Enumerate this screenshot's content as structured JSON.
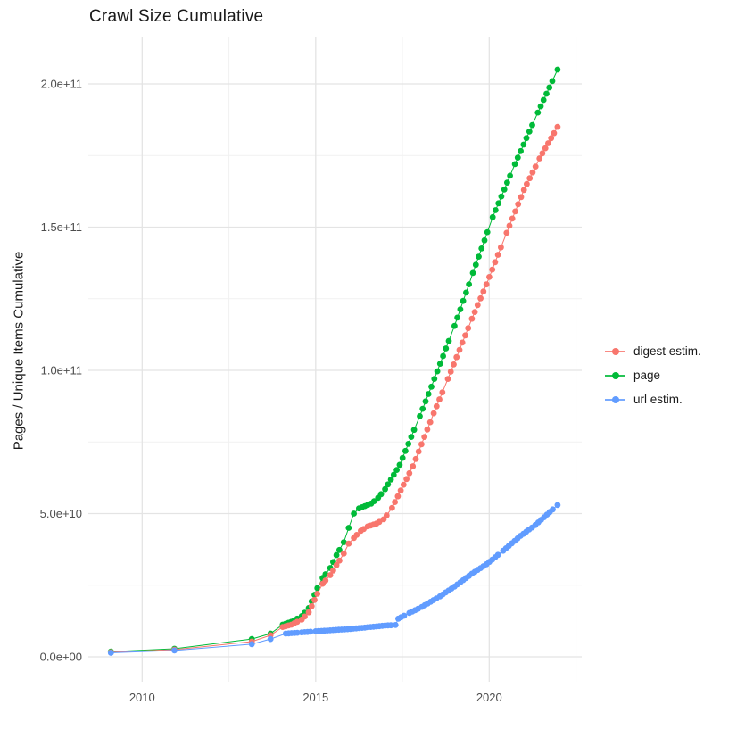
{
  "chart_data": {
    "type": "line",
    "title": "Crawl Size Cumulative",
    "xlabel": "",
    "ylabel": "Pages / Unique Items Cumulative",
    "value_unit": "pages (values in billions, 1e9)",
    "x_ticks": [
      {
        "v": 2010,
        "label": "2010"
      },
      {
        "v": 2015,
        "label": "2015"
      },
      {
        "v": 2020,
        "label": "2020"
      }
    ],
    "x_minor": [
      2012.5,
      2017.5,
      2022.5
    ],
    "y_ticks": [
      {
        "v": 0,
        "label": "0.0e+00"
      },
      {
        "v": 50,
        "label": "5.0e+10"
      },
      {
        "v": 100,
        "label": "1.0e+11"
      },
      {
        "v": 150,
        "label": "1.5e+11"
      },
      {
        "v": 200,
        "label": "2.0e+11"
      }
    ],
    "y_minor": [
      25,
      75,
      125,
      175
    ],
    "x_range": [
      2008.6,
      2022.7
    ],
    "y_range_e9": [
      -15,
      222
    ],
    "grid": true,
    "legend_position": "right",
    "point_interval_years": 0.0833,
    "dense_from_year": 2014.0,
    "draw_order": [
      "page",
      "digest estim.",
      "url estim."
    ],
    "colors": {
      "grid_major": "#E4E4E4",
      "grid_minor": "#F1F1F1",
      "tick_label": "#4D4D4D",
      "text": "#1A1A1A"
    },
    "series": [
      {
        "name": "digest estim.",
        "id": "digest-estim",
        "color": "#F8766D",
        "points": [
          [
            2009.1,
            1.6
          ],
          [
            2010.93,
            2.5
          ],
          [
            2013.16,
            5.3
          ],
          [
            2013.7,
            7.5
          ],
          [
            2014.05,
            10.4
          ],
          [
            2014.3,
            11.2
          ],
          [
            2014.6,
            13.0
          ],
          [
            2014.8,
            15.5
          ],
          [
            2015.05,
            22.0
          ],
          [
            2015.2,
            25.5
          ],
          [
            2015.42,
            28.5
          ],
          [
            2015.6,
            32.0
          ],
          [
            2015.81,
            36.0
          ],
          [
            2015.95,
            39.5
          ],
          [
            2016.1,
            41.5
          ],
          [
            2016.3,
            44.0
          ],
          [
            2016.5,
            45.5
          ],
          [
            2016.75,
            46.5
          ],
          [
            2016.96,
            48.0
          ],
          [
            2017.2,
            52.0
          ],
          [
            2017.8,
            66.5
          ],
          [
            2018.4,
            85.0
          ],
          [
            2018.81,
            97.0
          ],
          [
            2019.5,
            118.0
          ],
          [
            2019.92,
            130.0
          ],
          [
            2020.5,
            148.0
          ],
          [
            2021.0,
            163.0
          ],
          [
            2021.45,
            174.0
          ],
          [
            2021.97,
            185.0
          ]
        ]
      },
      {
        "name": "page",
        "id": "page",
        "color": "#00BA38",
        "points": [
          [
            2009.1,
            1.8
          ],
          [
            2010.93,
            2.8
          ],
          [
            2013.16,
            6.2
          ],
          [
            2013.7,
            8.1
          ],
          [
            2014.05,
            11.2
          ],
          [
            2014.3,
            12.2
          ],
          [
            2014.6,
            14.2
          ],
          [
            2014.8,
            17.0
          ],
          [
            2015.05,
            24.0
          ],
          [
            2015.2,
            27.5
          ],
          [
            2015.42,
            31.0
          ],
          [
            2015.6,
            35.5
          ],
          [
            2015.81,
            40.0
          ],
          [
            2015.95,
            45.0
          ],
          [
            2016.1,
            50.0
          ],
          [
            2016.25,
            51.8
          ],
          [
            2016.6,
            53.5
          ],
          [
            2016.8,
            55.5
          ],
          [
            2017.0,
            58.5
          ],
          [
            2017.42,
            67.0
          ],
          [
            2018.0,
            84.0
          ],
          [
            2018.42,
            97.0
          ],
          [
            2019.0,
            115.5
          ],
          [
            2019.53,
            134.0
          ],
          [
            2020.1,
            153.5
          ],
          [
            2020.74,
            172.0
          ],
          [
            2021.4,
            190.0
          ],
          [
            2021.97,
            205.0
          ]
        ]
      },
      {
        "name": "url estim.",
        "id": "url-estim",
        "color": "#619CFF",
        "points": [
          [
            2009.1,
            1.4
          ],
          [
            2010.93,
            2.2
          ],
          [
            2013.16,
            4.4
          ],
          [
            2013.7,
            6.2
          ],
          [
            2014.14,
            8.1
          ],
          [
            2014.6,
            8.5
          ],
          [
            2015.0,
            8.9
          ],
          [
            2015.5,
            9.3
          ],
          [
            2016.0,
            9.7
          ],
          [
            2016.5,
            10.3
          ],
          [
            2017.0,
            10.9
          ],
          [
            2017.3,
            11.1
          ],
          [
            2017.38,
            13.3
          ],
          [
            2017.7,
            15.3
          ],
          [
            2018.06,
            17.4
          ],
          [
            2018.58,
            21.1
          ],
          [
            2019.0,
            24.5
          ],
          [
            2019.5,
            29.0
          ],
          [
            2019.92,
            32.3
          ],
          [
            2020.4,
            37.0
          ],
          [
            2020.9,
            42.2
          ],
          [
            2021.33,
            46.0
          ],
          [
            2021.97,
            53.0
          ]
        ]
      }
    ],
    "legend": {
      "items": [
        {
          "label": "digest estim.",
          "color": "#F8766D"
        },
        {
          "label": "page",
          "color": "#00BA38"
        },
        {
          "label": "url estim.",
          "color": "#619CFF"
        }
      ]
    }
  }
}
